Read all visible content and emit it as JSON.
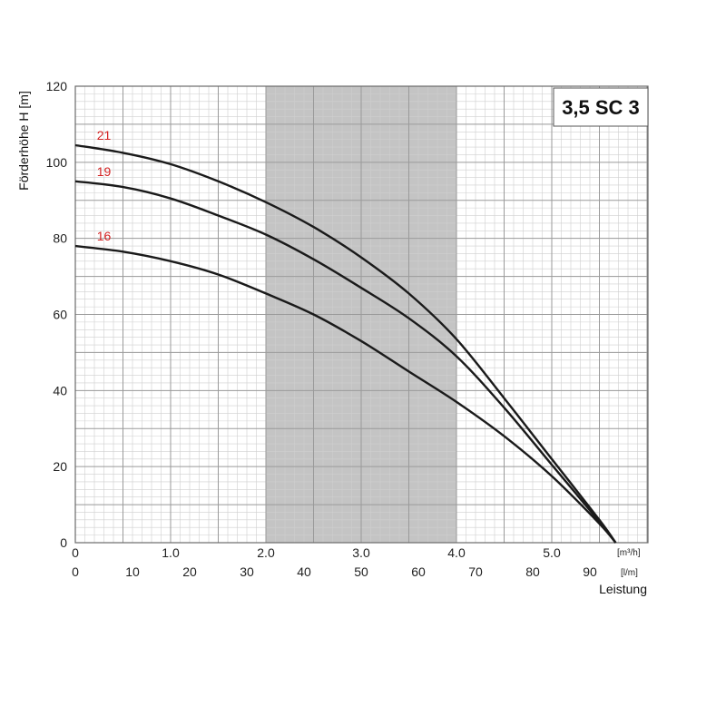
{
  "chart_data": {
    "type": "line",
    "title": "3,5 SC 3",
    "ylabel": "Förderhöhe  H [m]",
    "xlabel": "Leistung",
    "x_unit_primary": "[m³/h]",
    "x_unit_secondary": "[l/m]",
    "xlim": [
      0,
      6.0
    ],
    "ylim": [
      0,
      120
    ],
    "y_ticks": [
      "0",
      "20",
      "40",
      "60",
      "80",
      "100",
      "120"
    ],
    "y_tick_values": [
      0,
      20,
      40,
      60,
      80,
      100,
      120
    ],
    "x_ticks_primary": [
      "0",
      "1.0",
      "2.0",
      "3.0",
      "4.0",
      "5.0"
    ],
    "x_tick_values_primary": [
      0,
      1,
      2,
      3,
      4,
      5
    ],
    "x_ticks_secondary": [
      "0",
      "10",
      "20",
      "30",
      "40",
      "50",
      "60",
      "70",
      "80",
      "90"
    ],
    "x_tick_values_secondary": [
      0,
      10,
      20,
      30,
      40,
      50,
      60,
      70,
      80,
      90
    ],
    "grid": true,
    "recommended_range": [
      2.0,
      4.0
    ],
    "colors": {
      "curve": "#1a1a1a",
      "label": "#d32020",
      "band": "#c4c4c4",
      "grid": "#9a9a9a"
    },
    "series": [
      {
        "name": "21",
        "x": [
          0,
          0.5,
          1.0,
          1.5,
          2.0,
          2.5,
          3.0,
          3.5,
          4.0,
          4.5,
          5.0,
          5.5,
          5.67
        ],
        "values": [
          104.5,
          102.5,
          99.5,
          95,
          89.5,
          83,
          75,
          65.5,
          53.5,
          38,
          22,
          6,
          0
        ]
      },
      {
        "name": "19",
        "x": [
          0,
          0.5,
          1.0,
          1.5,
          2.0,
          2.5,
          3.0,
          3.5,
          4.0,
          4.5,
          5.0,
          5.5,
          5.67
        ],
        "values": [
          95,
          93.5,
          90.5,
          86,
          81,
          74.5,
          67,
          59,
          49,
          35.5,
          20.5,
          5.5,
          0
        ]
      },
      {
        "name": "16",
        "x": [
          0,
          0.5,
          1.0,
          1.5,
          2.0,
          2.5,
          3.0,
          3.5,
          4.0,
          4.5,
          5.0,
          5.5,
          5.67
        ],
        "values": [
          78,
          76.5,
          74,
          70.5,
          65.5,
          60,
          53,
          45,
          37,
          28,
          17.5,
          5,
          0
        ]
      }
    ]
  }
}
